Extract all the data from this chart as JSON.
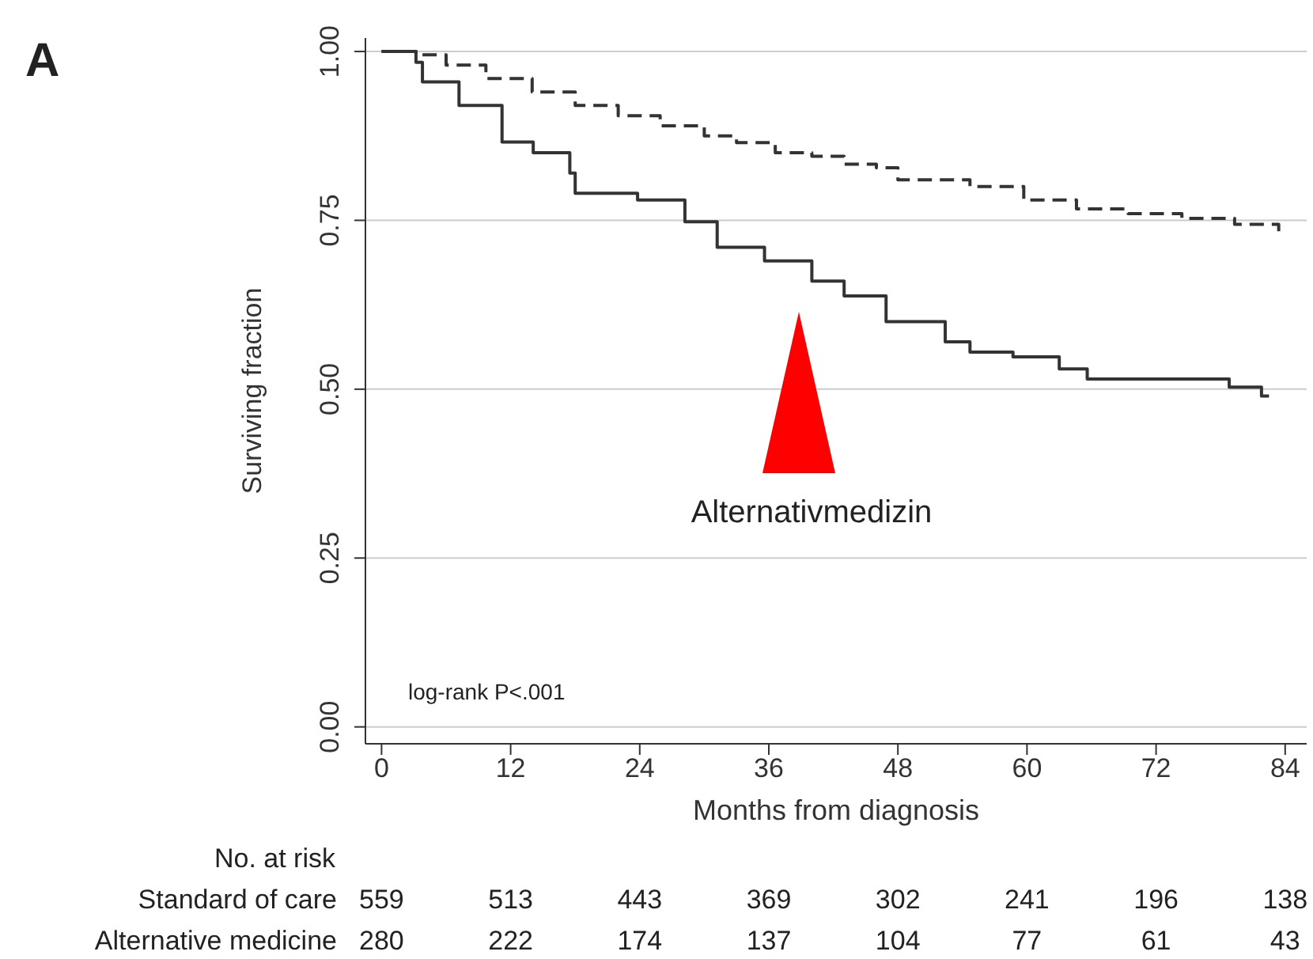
{
  "chart_data": {
    "type": "step",
    "xlabel": "Months from diagnosis",
    "ylabel": "Surviving fraction",
    "xlim": [
      -1.5,
      86
    ],
    "xticks": [
      0,
      12,
      24,
      36,
      48,
      60,
      72,
      84
    ],
    "ylim": [
      -0.025,
      1.02
    ],
    "yticks": [
      {
        "value": 0,
        "label": "0.00"
      },
      {
        "value": 0.25,
        "label": "0.25"
      },
      {
        "value": 0.5,
        "label": "0.50"
      },
      {
        "value": 0.75,
        "label": "0.75"
      },
      {
        "value": 1,
        "label": "1.00"
      }
    ],
    "grid": "y",
    "legend": false,
    "series": [
      {
        "color": "#333333",
        "line_style": "dashed",
        "x": [
          0,
          3.2,
          6,
          9.7,
          14,
          18,
          22,
          25.9,
          30,
          33,
          36.6,
          40,
          43,
          46,
          48,
          54.7,
          59.7,
          64.6,
          69.4,
          74.4,
          79.3,
          83.4
        ],
        "values": [
          1,
          0.995,
          0.98,
          0.96,
          0.94,
          0.92,
          0.905,
          0.89,
          0.875,
          0.865,
          0.85,
          0.845,
          0.833,
          0.828,
          0.81,
          0.8,
          0.78,
          0.767,
          0.76,
          0.753,
          0.744,
          0.734
        ]
      },
      {
        "color": "#333333",
        "line_style": "solid",
        "x": [
          0,
          3.2,
          3.8,
          7.2,
          11.2,
          14.1,
          17.5,
          18,
          23.8,
          28.2,
          31.2,
          35.6,
          40,
          43,
          46.9,
          52.4,
          54.7,
          58.7,
          63,
          65.6,
          78.5,
          78.8,
          81.8,
          82.5
        ],
        "values": [
          1,
          0.984,
          0.955,
          0.92,
          0.866,
          0.85,
          0.82,
          0.79,
          0.78,
          0.748,
          0.71,
          0.69,
          0.66,
          0.638,
          0.6,
          0.57,
          0.555,
          0.548,
          0.53,
          0.515,
          0.515,
          0.503,
          0.49,
          0.49
        ]
      }
    ],
    "annotations": [
      "A",
      "log-rank P<.001",
      "Alternativmedizin",
      "No. at risk",
      "Standard of care",
      "559",
      "513",
      "443",
      "369",
      "302",
      "241",
      "196",
      "138",
      "Alternative medicine",
      "280",
      "222",
      "174",
      "137",
      "104",
      "77",
      "61",
      "43"
    ]
  }
}
